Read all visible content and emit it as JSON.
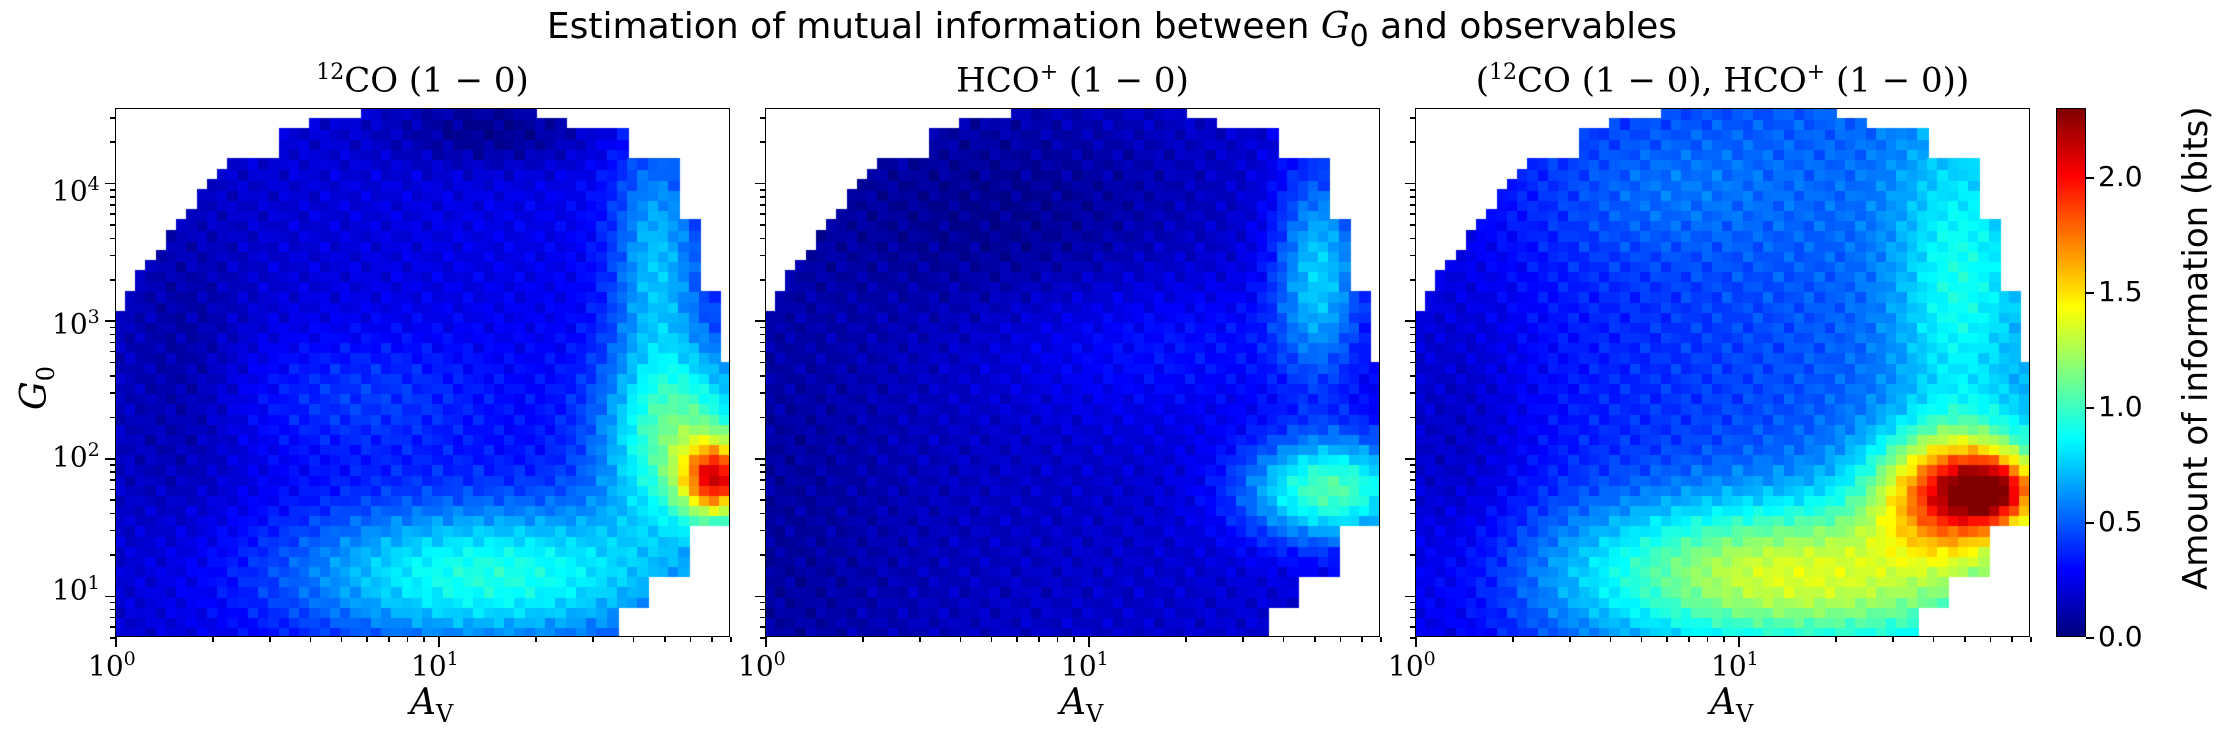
{
  "title_pre": "Estimation of mutual information between ",
  "title_var": "G",
  "title_sub": "0",
  "title_post": " and observables",
  "colorbar": {
    "label": "Amount of information (bits)",
    "ticks": [
      "0.0",
      "0.5",
      "1.0",
      "1.5",
      "2.0"
    ],
    "range": [
      0.0,
      2.3
    ],
    "colormap": "jet"
  },
  "axes": {
    "xlabel_var": "A",
    "xlabel_sub": "V",
    "ylabel_var": "G",
    "ylabel_sub": "0",
    "x_scale": "log",
    "y_scale": "log",
    "xlim": [
      1,
      80
    ],
    "ylim": [
      5,
      35000
    ],
    "xtick_base": "10",
    "xtick_exps": [
      "0",
      "1"
    ],
    "ytick_base": "10",
    "ytick_exps": [
      "1",
      "2",
      "3",
      "4"
    ]
  },
  "chart_data": [
    {
      "type": "heatmap",
      "title_iso": "12",
      "title_main": "CO (1 − 0)",
      "x": "A_V",
      "y": "G_0",
      "value": "mutual information (bits)",
      "features": [
        {
          "av": 1.0,
          "g0": 10,
          "value": 0.1
        },
        {
          "av": 3.0,
          "g0": 3000,
          "value": 0.25
        },
        {
          "av": 20,
          "g0": 10,
          "value": 0.85
        },
        {
          "av": 60,
          "g0": 200,
          "value": 1.1
        },
        {
          "av": 75,
          "g0": 50,
          "value": 2.0
        },
        {
          "av": 30,
          "g0": 25000,
          "value": 0.05
        }
      ]
    },
    {
      "type": "heatmap",
      "title_main": "HCO",
      "title_charge": "+",
      "title_tail": " (1 − 0)",
      "x": "A_V",
      "y": "G_0",
      "value": "mutual information (bits)",
      "features": [
        {
          "av": 1.5,
          "g0": 10,
          "value": 0.1
        },
        {
          "av": 8,
          "g0": 2500,
          "value": 0.03
        },
        {
          "av": 50,
          "g0": 40,
          "value": 1.0
        },
        {
          "av": 55,
          "g0": 2000,
          "value": 0.7
        }
      ]
    },
    {
      "type": "heatmap",
      "title_open": "(",
      "title_iso": "12",
      "title_main": "CO (1 − 0), HCO",
      "title_charge": "+",
      "title_tail": " (1 − 0))",
      "x": "A_V",
      "y": "G_0",
      "value": "mutual information (bits)",
      "features": [
        {
          "av": 1.0,
          "g0": 10,
          "value": 0.1
        },
        {
          "av": 20,
          "g0": 15,
          "value": 1.3
        },
        {
          "av": 40,
          "g0": 50,
          "value": 1.7
        },
        {
          "av": 70,
          "g0": 45,
          "value": 2.3
        },
        {
          "av": 60,
          "g0": 2000,
          "value": 0.8
        }
      ]
    }
  ]
}
